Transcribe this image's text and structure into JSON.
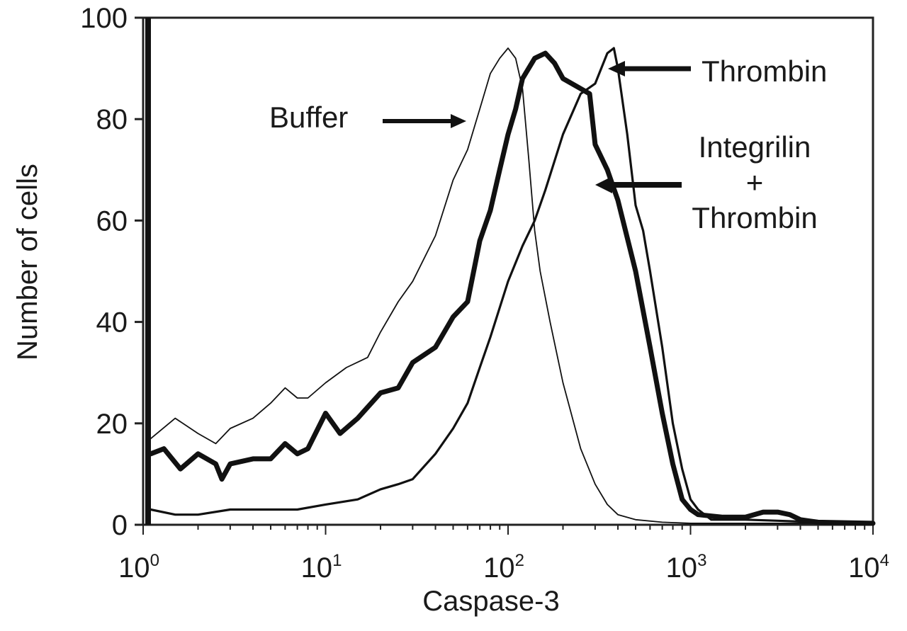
{
  "chart_data": {
    "type": "line",
    "title": "",
    "xlabel": "Caspase-3",
    "ylabel": "Number of cells",
    "xscale": "log",
    "xlim": [
      1,
      10000
    ],
    "ylim": [
      0,
      100
    ],
    "y_ticks": [
      0,
      20,
      40,
      60,
      80,
      100
    ],
    "y_tick_labels": [
      "0",
      "20",
      "40",
      "60",
      "80",
      "100"
    ],
    "x_tick_labels": [
      {
        "base": "10",
        "exp": "0"
      },
      {
        "base": "10",
        "exp": "1"
      },
      {
        "base": "10",
        "exp": "2"
      },
      {
        "base": "10",
        "exp": "3"
      },
      {
        "base": "10",
        "exp": "4"
      }
    ],
    "grid": false,
    "annotations": [
      {
        "text": "Buffer",
        "series": "Buffer"
      },
      {
        "text": "Thrombin",
        "series": "Thrombin"
      },
      {
        "lines": [
          "Integrilin",
          "+",
          "Thrombin"
        ],
        "series": "Integrilin + Thrombin"
      }
    ],
    "series": [
      {
        "name": "Buffer",
        "style": "thin",
        "points": [
          [
            1.1,
            17
          ],
          [
            1.5,
            21
          ],
          [
            2,
            18
          ],
          [
            2.5,
            16
          ],
          [
            3,
            19
          ],
          [
            4,
            21
          ],
          [
            5,
            24
          ],
          [
            6,
            27
          ],
          [
            7,
            25
          ],
          [
            8,
            25
          ],
          [
            10,
            28
          ],
          [
            13,
            31
          ],
          [
            17,
            33
          ],
          [
            20,
            38
          ],
          [
            25,
            44
          ],
          [
            30,
            48
          ],
          [
            40,
            57
          ],
          [
            50,
            68
          ],
          [
            60,
            74
          ],
          [
            70,
            82
          ],
          [
            80,
            89
          ],
          [
            90,
            92
          ],
          [
            100,
            94
          ],
          [
            110,
            92
          ],
          [
            120,
            86
          ],
          [
            130,
            72
          ],
          [
            140,
            58
          ],
          [
            150,
            50
          ],
          [
            170,
            40
          ],
          [
            200,
            28
          ],
          [
            250,
            15
          ],
          [
            300,
            8
          ],
          [
            350,
            4
          ],
          [
            400,
            2
          ],
          [
            500,
            1
          ],
          [
            700,
            0.5
          ],
          [
            1000,
            0.3
          ],
          [
            2000,
            0.3
          ],
          [
            5000,
            0.3
          ],
          [
            10000,
            0.3
          ]
        ]
      },
      {
        "name": "Integrilin + Thrombin",
        "style": "thick",
        "points": [
          [
            1.1,
            14
          ],
          [
            1.3,
            15
          ],
          [
            1.6,
            11
          ],
          [
            2,
            14
          ],
          [
            2.5,
            12
          ],
          [
            2.7,
            9
          ],
          [
            3,
            12
          ],
          [
            4,
            13
          ],
          [
            5,
            13
          ],
          [
            6,
            16
          ],
          [
            7,
            14
          ],
          [
            8,
            15
          ],
          [
            10,
            22
          ],
          [
            12,
            18
          ],
          [
            15,
            21
          ],
          [
            20,
            26
          ],
          [
            25,
            27
          ],
          [
            30,
            32
          ],
          [
            40,
            35
          ],
          [
            50,
            41
          ],
          [
            60,
            44
          ],
          [
            70,
            56
          ],
          [
            80,
            62
          ],
          [
            90,
            70
          ],
          [
            100,
            77
          ],
          [
            110,
            82
          ],
          [
            120,
            88
          ],
          [
            140,
            92
          ],
          [
            160,
            93
          ],
          [
            180,
            91
          ],
          [
            200,
            88
          ],
          [
            250,
            86
          ],
          [
            280,
            85
          ],
          [
            300,
            75
          ],
          [
            350,
            70
          ],
          [
            400,
            64
          ],
          [
            500,
            50
          ],
          [
            600,
            35
          ],
          [
            700,
            22
          ],
          [
            800,
            12
          ],
          [
            900,
            5
          ],
          [
            1000,
            3
          ],
          [
            1100,
            2
          ],
          [
            1500,
            1.5
          ],
          [
            2000,
            1.5
          ],
          [
            2500,
            2.5
          ],
          [
            3000,
            2.5
          ],
          [
            3500,
            2
          ],
          [
            4000,
            1
          ],
          [
            5000,
            0.5
          ],
          [
            10000,
            0.3
          ]
        ]
      },
      {
        "name": "Thrombin",
        "style": "medium",
        "points": [
          [
            1.1,
            3
          ],
          [
            1.5,
            2
          ],
          [
            2,
            2
          ],
          [
            3,
            3
          ],
          [
            5,
            3
          ],
          [
            7,
            3
          ],
          [
            10,
            4
          ],
          [
            15,
            5
          ],
          [
            20,
            7
          ],
          [
            25,
            8
          ],
          [
            30,
            9
          ],
          [
            40,
            14
          ],
          [
            50,
            19
          ],
          [
            60,
            24
          ],
          [
            70,
            31
          ],
          [
            80,
            37
          ],
          [
            100,
            48
          ],
          [
            120,
            55
          ],
          [
            140,
            60
          ],
          [
            160,
            66
          ],
          [
            200,
            77
          ],
          [
            250,
            85
          ],
          [
            300,
            87
          ],
          [
            350,
            93
          ],
          [
            380,
            94
          ],
          [
            400,
            90
          ],
          [
            450,
            77
          ],
          [
            500,
            63
          ],
          [
            550,
            58
          ],
          [
            600,
            50
          ],
          [
            700,
            35
          ],
          [
            800,
            20
          ],
          [
            900,
            11
          ],
          [
            1000,
            5
          ],
          [
            1100,
            3
          ],
          [
            1300,
            1
          ],
          [
            2000,
            1
          ],
          [
            3000,
            0.8
          ],
          [
            5000,
            0.5
          ],
          [
            10000,
            0.3
          ]
        ]
      }
    ]
  }
}
